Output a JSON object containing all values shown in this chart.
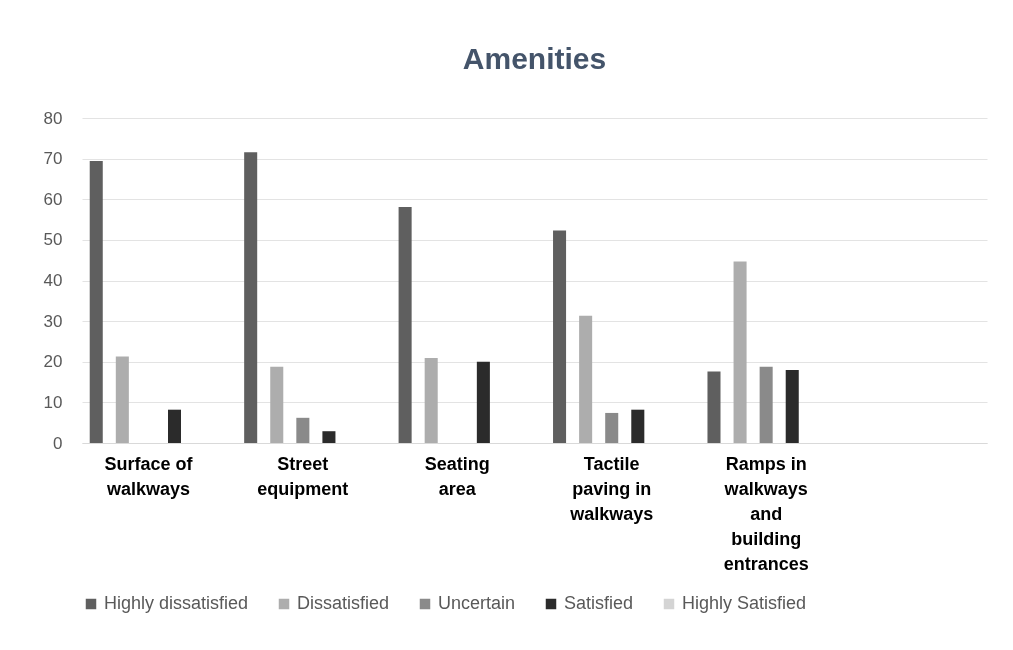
{
  "chart_data": {
    "type": "bar",
    "title": "Amenities",
    "categories": [
      "Surface of walkways",
      "Street equipment",
      "Seating area",
      "Tactile paving in walkways",
      "Ramps in walkways and building entrances",
      null
    ],
    "series": [
      {
        "name": "Highly dissatisfied",
        "color": "#5f5f5f",
        "values": [
          69.4,
          71.6,
          58.1,
          52.3,
          17.6,
          null
        ]
      },
      {
        "name": "Dissatisfied",
        "color": "#adadad",
        "values": [
          21.3,
          18.8,
          20.9,
          31.3,
          44.7,
          null
        ]
      },
      {
        "name": "Uncertain",
        "color": "#8a8a8a",
        "values": [
          null,
          6.2,
          null,
          7.4,
          18.8,
          null
        ]
      },
      {
        "name": "Satisfied",
        "color": "#2b2b2b",
        "values": [
          8.2,
          2.9,
          20.0,
          8.2,
          18.0,
          null
        ]
      },
      {
        "name": "Highly Satisfied",
        "color": "#d4d4d4",
        "values": [
          null,
          null,
          null,
          null,
          null,
          null
        ]
      }
    ],
    "ylim": [
      0,
      80
    ],
    "yticks": [
      0,
      10,
      20,
      30,
      40,
      50,
      60,
      70,
      80
    ],
    "grid": "y",
    "legend": "bottom"
  }
}
